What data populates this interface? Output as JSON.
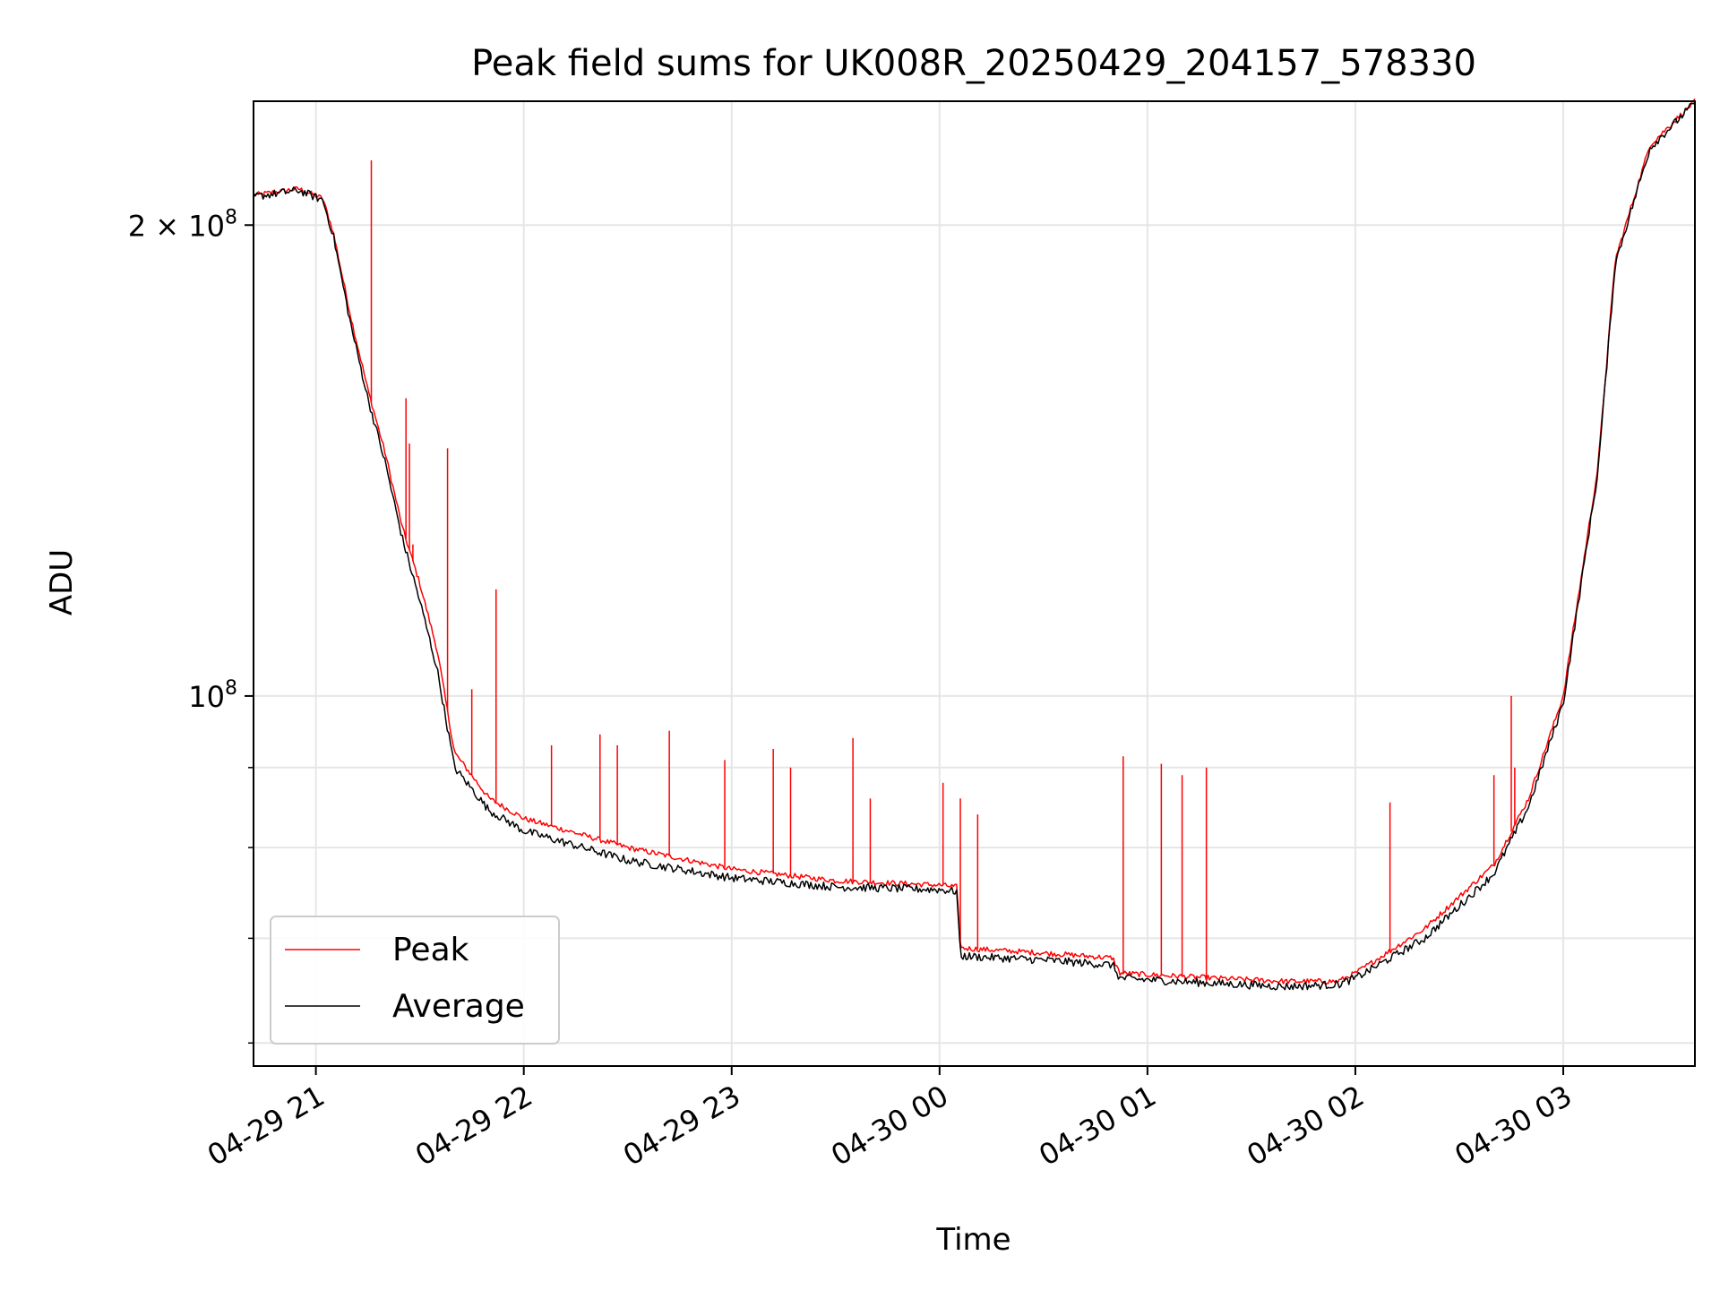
{
  "chart_data": {
    "type": "line",
    "title": "Peak field sums for UK008R_20250429_204157_578330",
    "xlabel": "Time",
    "ylabel": "ADU",
    "yscale": "log",
    "grid": true,
    "legend_position": "lower-left",
    "xlim": [
      "2025-04-29 20:42",
      "2025-04-30 03:38"
    ],
    "ylim": [
      58000000,
      240000000
    ],
    "x_ticks": [
      {
        "value": "2025-04-29 21:00",
        "label": "04-29 21"
      },
      {
        "value": "2025-04-29 22:00",
        "label": "04-29 22"
      },
      {
        "value": "2025-04-29 23:00",
        "label": "04-29 23"
      },
      {
        "value": "2025-04-30 00:00",
        "label": "04-30 00"
      },
      {
        "value": "2025-04-30 01:00",
        "label": "04-30 01"
      },
      {
        "value": "2025-04-30 02:00",
        "label": "04-30 02"
      },
      {
        "value": "2025-04-30 03:00",
        "label": "04-30 03"
      }
    ],
    "y_major_ticks": [
      {
        "value": 100000000,
        "label_base": "10",
        "label_exp": "8"
      },
      {
        "value": 200000000,
        "label_base": "2 × 10",
        "label_exp": "8"
      }
    ],
    "y_minor_ticks": [
      60000000,
      70000000,
      80000000,
      90000000
    ],
    "series": [
      {
        "name": "Peak",
        "color": "#ff0000",
        "x": [
          "2025-04-29 20:42",
          "2025-04-29 20:55",
          "2025-04-29 21:02",
          "2025-04-29 21:05",
          "2025-04-29 21:10",
          "2025-04-29 21:15",
          "2025-04-29 21:20",
          "2025-04-29 21:25",
          "2025-04-29 21:30",
          "2025-04-29 21:35",
          "2025-04-29 21:40",
          "2025-04-29 21:50",
          "2025-04-29 22:00",
          "2025-04-29 22:30",
          "2025-04-29 23:00",
          "2025-04-29 23:30",
          "2025-04-30 00:00",
          "2025-04-30 00:05",
          "2025-04-30 00:06",
          "2025-04-30 00:30",
          "2025-04-30 00:50",
          "2025-04-30 00:52",
          "2025-04-30 01:20",
          "2025-04-30 01:40",
          "2025-04-30 01:55",
          "2025-04-30 02:00",
          "2025-04-30 02:20",
          "2025-04-30 02:40",
          "2025-04-30 02:50",
          "2025-04-30 03:00",
          "2025-04-30 03:10",
          "2025-04-30 03:15",
          "2025-04-30 03:25",
          "2025-04-30 03:38"
        ],
        "y": [
          209000000,
          211000000,
          208000000,
          198000000,
          175000000,
          157000000,
          143000000,
          128000000,
          118000000,
          107000000,
          92000000,
          86000000,
          83500000,
          80000000,
          77500000,
          76200000,
          75700000,
          75500000,
          69000000,
          68500000,
          68000000,
          66500000,
          66000000,
          65700000,
          65700000,
          66500000,
          71000000,
          78000000,
          86000000,
          100000000,
          140000000,
          190000000,
          225000000,
          240000000
        ],
        "spikes": [
          {
            "x": "2025-04-29 21:16",
            "y": 220000000
          },
          {
            "x": "2025-04-29 21:26",
            "y": 155000000
          },
          {
            "x": "2025-04-29 21:27",
            "y": 145000000
          },
          {
            "x": "2025-04-29 21:28",
            "y": 125000000
          },
          {
            "x": "2025-04-29 21:38",
            "y": 144000000
          },
          {
            "x": "2025-04-29 21:45",
            "y": 101000000
          },
          {
            "x": "2025-04-29 21:52",
            "y": 117000000
          },
          {
            "x": "2025-04-29 22:08",
            "y": 93000000
          },
          {
            "x": "2025-04-29 22:22",
            "y": 94500000
          },
          {
            "x": "2025-04-29 22:27",
            "y": 93000000
          },
          {
            "x": "2025-04-29 22:42",
            "y": 95000000
          },
          {
            "x": "2025-04-29 22:58",
            "y": 91000000
          },
          {
            "x": "2025-04-29 23:12",
            "y": 92500000
          },
          {
            "x": "2025-04-29 23:17",
            "y": 90000000
          },
          {
            "x": "2025-04-29 23:35",
            "y": 94000000
          },
          {
            "x": "2025-04-29 23:40",
            "y": 86000000
          },
          {
            "x": "2025-04-30 00:01",
            "y": 88000000
          },
          {
            "x": "2025-04-30 00:06",
            "y": 86000000
          },
          {
            "x": "2025-04-30 00:11",
            "y": 84000000
          },
          {
            "x": "2025-04-30 00:53",
            "y": 91500000
          },
          {
            "x": "2025-04-30 01:04",
            "y": 90500000
          },
          {
            "x": "2025-04-30 01:10",
            "y": 89000000
          },
          {
            "x": "2025-04-30 01:17",
            "y": 90000000
          },
          {
            "x": "2025-04-30 02:10",
            "y": 85500000
          },
          {
            "x": "2025-04-30 02:40",
            "y": 89000000
          },
          {
            "x": "2025-04-30 02:45",
            "y": 100000000
          },
          {
            "x": "2025-04-30 02:46",
            "y": 90000000
          }
        ]
      },
      {
        "name": "Average",
        "color": "#000000",
        "x": [
          "2025-04-29 20:42",
          "2025-04-29 20:55",
          "2025-04-29 21:02",
          "2025-04-29 21:05",
          "2025-04-29 21:10",
          "2025-04-29 21:15",
          "2025-04-29 21:20",
          "2025-04-29 21:25",
          "2025-04-29 21:30",
          "2025-04-29 21:35",
          "2025-04-29 21:40",
          "2025-04-29 21:50",
          "2025-04-29 22:00",
          "2025-04-29 22:30",
          "2025-04-29 23:00",
          "2025-04-29 23:30",
          "2025-04-30 00:00",
          "2025-04-30 00:05",
          "2025-04-30 00:06",
          "2025-04-30 00:30",
          "2025-04-30 00:50",
          "2025-04-30 00:52",
          "2025-04-30 01:20",
          "2025-04-30 01:40",
          "2025-04-30 01:55",
          "2025-04-30 02:00",
          "2025-04-30 02:20",
          "2025-04-30 02:40",
          "2025-04-30 02:50",
          "2025-04-30 03:00",
          "2025-04-30 03:10",
          "2025-04-30 03:15",
          "2025-04-30 03:25",
          "2025-04-30 03:38"
        ],
        "y": [
          208500000,
          210500000,
          207500000,
          197000000,
          173000000,
          155000000,
          141000000,
          126000000,
          115000000,
          104000000,
          90000000,
          84500000,
          82000000,
          78500000,
          76500000,
          75500000,
          75200000,
          75000000,
          68200000,
          67800000,
          67300000,
          66000000,
          65500000,
          65200000,
          65400000,
          66000000,
          70000000,
          77000000,
          85000000,
          99000000,
          139000000,
          189000000,
          224000000,
          239500000
        ]
      }
    ]
  }
}
